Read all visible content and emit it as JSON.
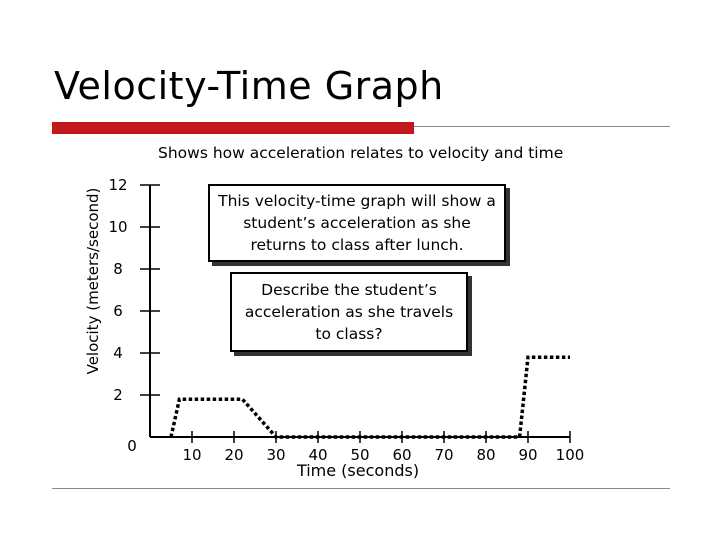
{
  "slide": {
    "title": "Velocity-Time Graph",
    "subtitle": "Shows how acceleration relates to velocity and time",
    "note_1": "This velocity-time graph will show a student’s acceleration as she returns to class after lunch.",
    "note_2": "Describe the student’s acceleration as she travels to class?",
    "accent_color": "#c0181b"
  },
  "chart_data": {
    "type": "line",
    "title": "",
    "xlabel": "Time (seconds)",
    "ylabel": "Velocity (meters/second)",
    "origin_label": "0",
    "x_ticks": [
      "10",
      "20",
      "30",
      "40",
      "50",
      "60",
      "70",
      "80",
      "90",
      "100"
    ],
    "y_ticks": [
      "2",
      "4",
      "6",
      "8",
      "10",
      "12"
    ],
    "xlim": [
      0,
      100
    ],
    "ylim": [
      0,
      12
    ],
    "line_style": "dotted",
    "series": [
      {
        "x": [
          5,
          7,
          16,
          19,
          22,
          30,
          55,
          70,
          88,
          90,
          100
        ],
        "y": [
          0,
          1.8,
          1.8,
          1.8,
          1.8,
          0,
          0,
          0,
          0,
          3.8,
          3.8
        ]
      }
    ]
  }
}
